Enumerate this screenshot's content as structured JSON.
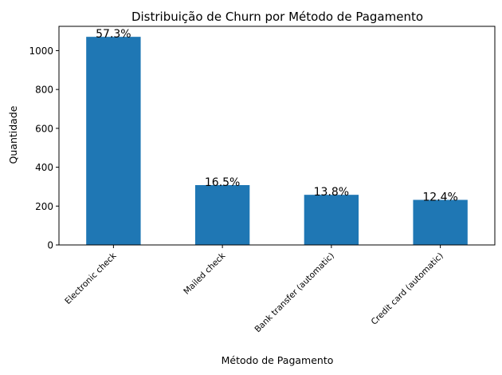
{
  "chart_data": {
    "type": "bar",
    "title": "Distribuição de Churn por Método de Pagamento",
    "xlabel": "Método de Pagamento",
    "ylabel": "Quantidade",
    "categories": [
      "Electronic check",
      "Mailed check",
      "Bank transfer (automatic)",
      "Credit card (automatic)"
    ],
    "values": [
      1071,
      308,
      258,
      232
    ],
    "data_labels": [
      "57.3%",
      "16.5%",
      "13.8%",
      "12.4%"
    ],
    "yticks": [
      0,
      200,
      400,
      600,
      800,
      1000
    ],
    "ylim": [
      0,
      1125
    ],
    "bar_color": "#1f77b4",
    "grid": false,
    "legend": "none"
  }
}
